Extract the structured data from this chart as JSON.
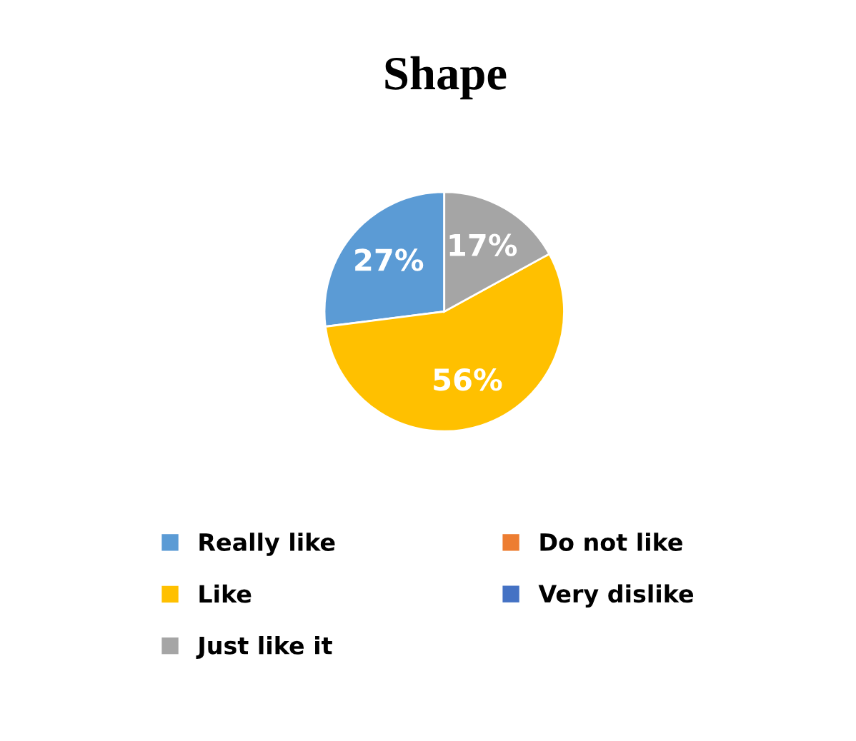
{
  "chart_data": {
    "type": "pie",
    "title": "Shape",
    "categories": [
      "Really like",
      "Do not like",
      "Like",
      "Very dislike",
      "Just like it"
    ],
    "values": [
      27,
      0,
      56,
      0,
      17
    ],
    "value_labels": [
      "27%",
      null,
      "56%",
      null,
      "17%"
    ],
    "colors": [
      "#5b9bd5",
      "#ed7d31",
      "#ffc000",
      "#4472c4",
      "#a5a5a5"
    ],
    "legend": "bottom"
  }
}
